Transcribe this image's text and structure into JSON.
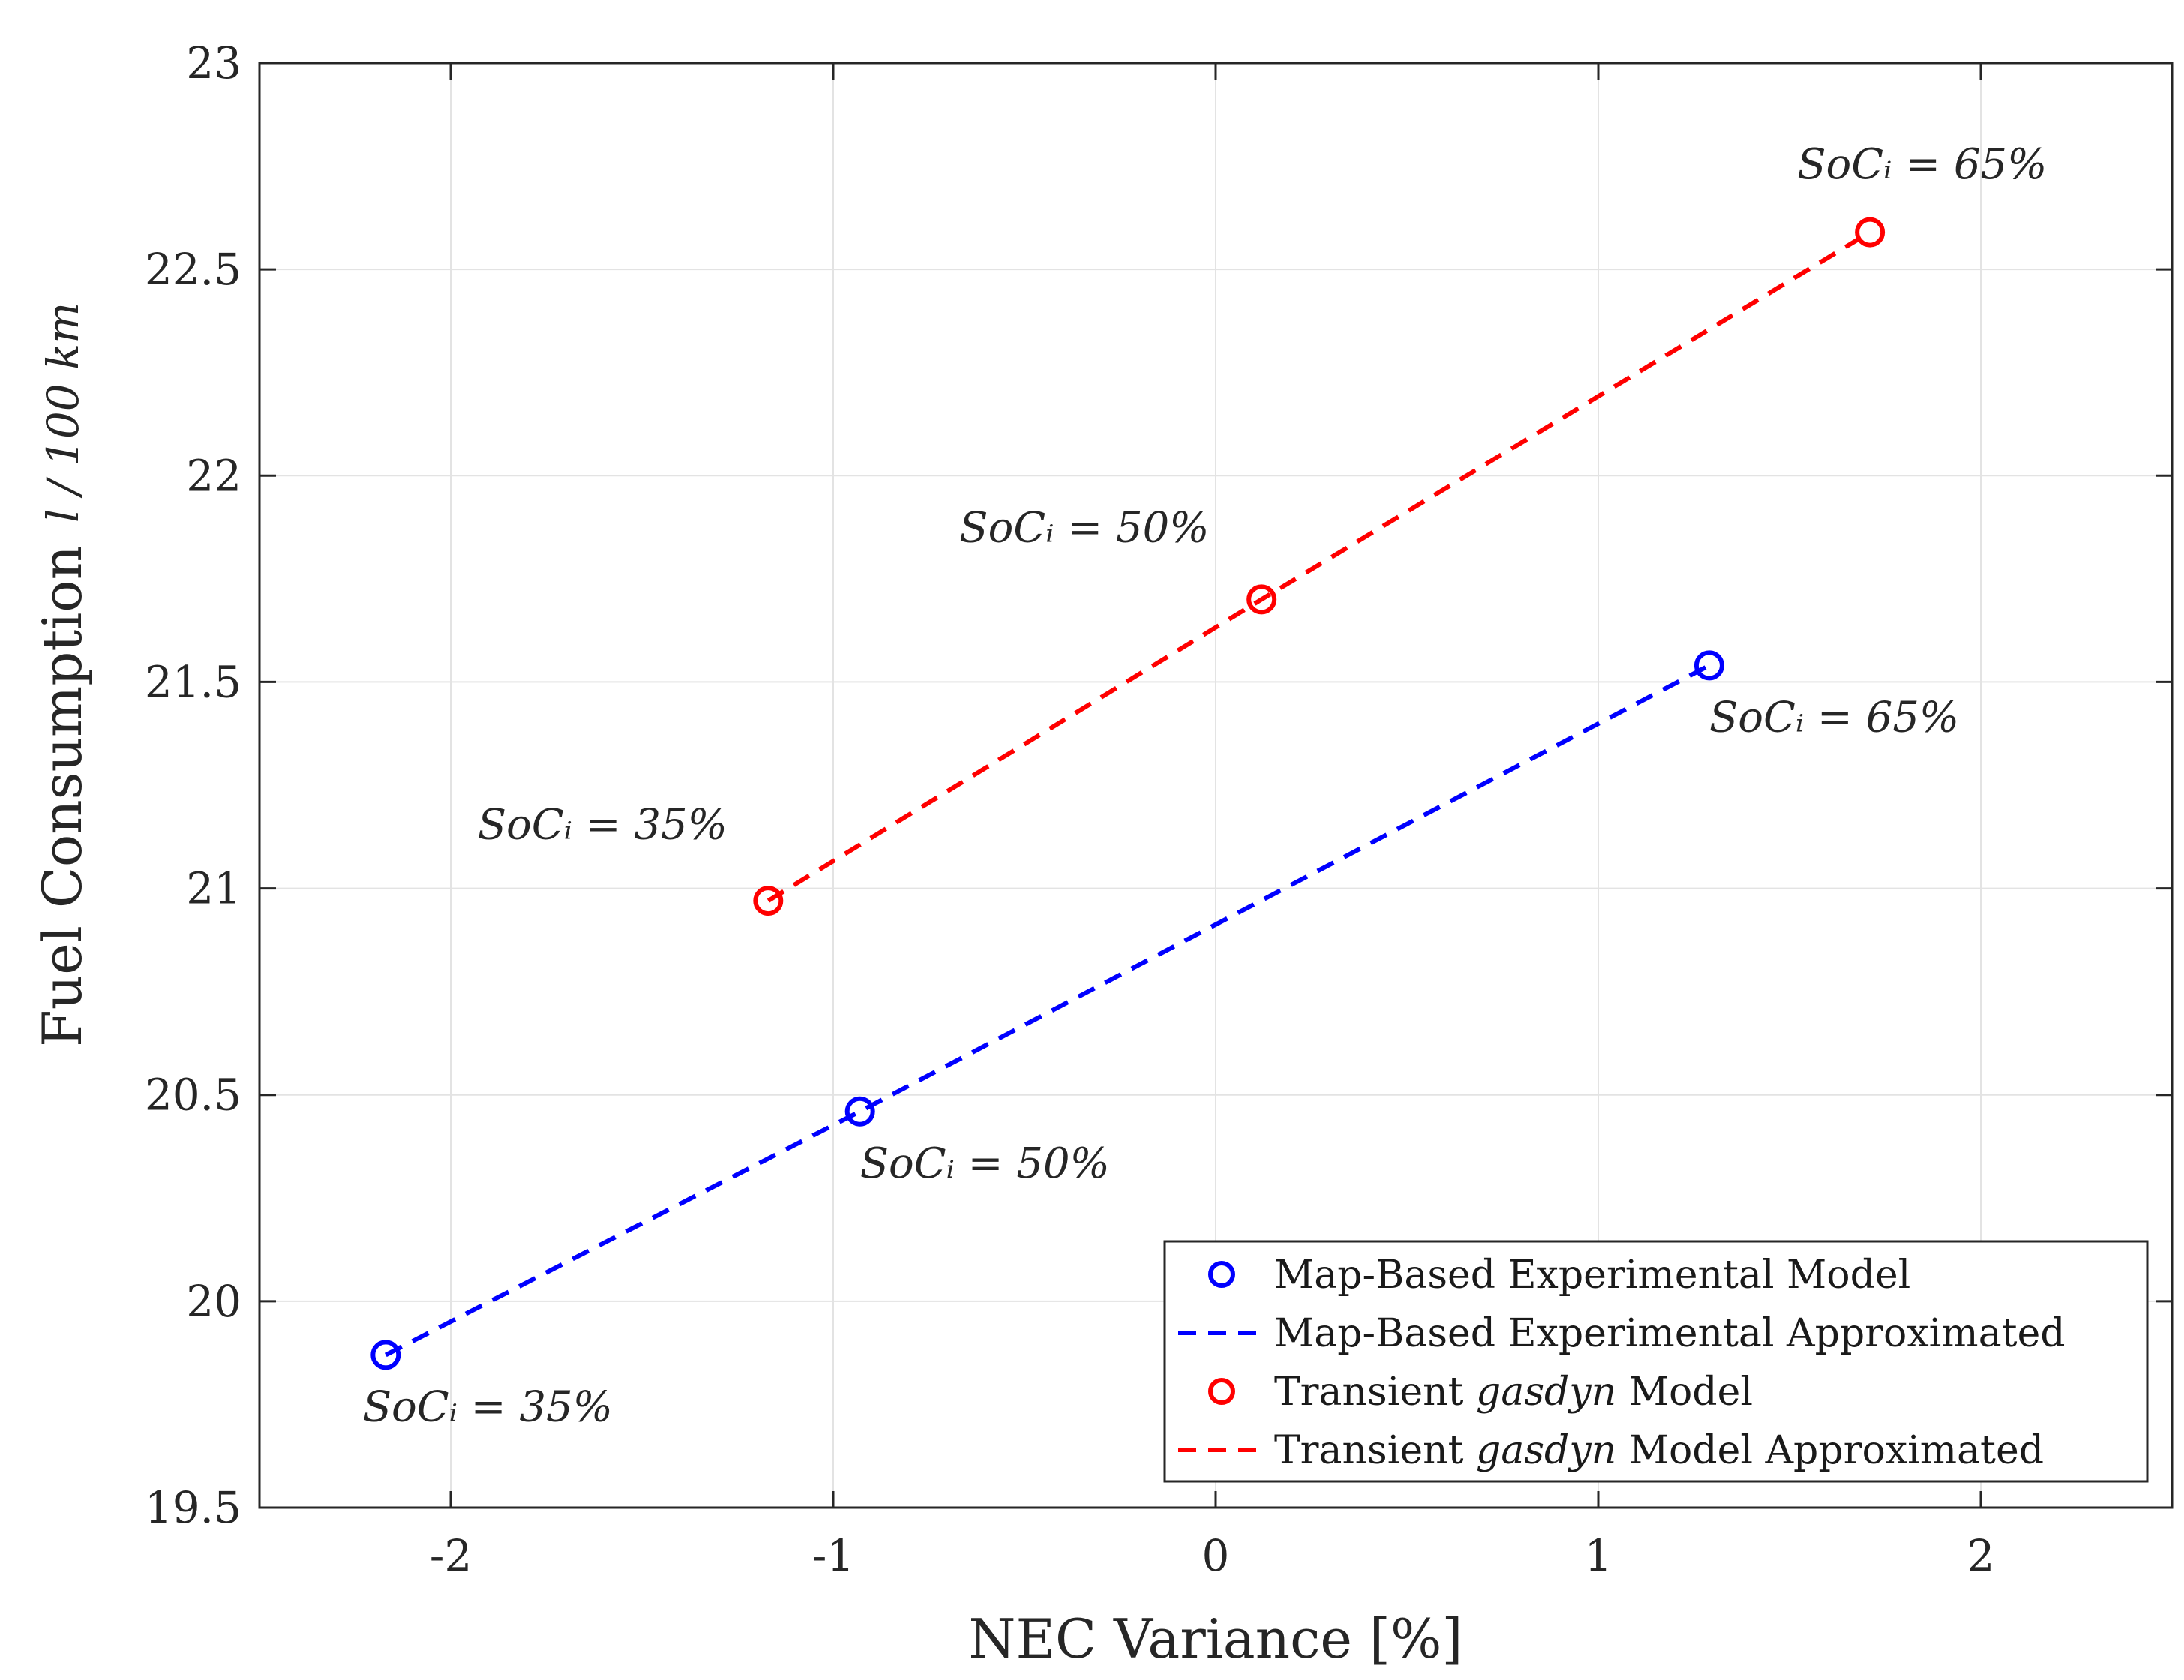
{
  "chart_data": {
    "type": "line",
    "title": "",
    "xlabel": "NEC Variance [%]",
    "ylabel": "Fuel Consumption",
    "ylabel_unit": "l / 100 km",
    "xlim": [
      -2.5,
      2.5
    ],
    "ylim": [
      19.5,
      23
    ],
    "xticks": [
      -2,
      -1,
      0,
      1,
      2
    ],
    "xtick_labels": [
      "-2",
      "-1",
      "0",
      "1",
      "2"
    ],
    "yticks": [
      19.5,
      20,
      20.5,
      21,
      21.5,
      22,
      22.5,
      23
    ],
    "ytick_labels": [
      "19.5",
      "20",
      "20.5",
      "21",
      "21.5",
      "22",
      "22.5",
      "23"
    ],
    "grid": true,
    "legend_position": "bottom-right",
    "series": [
      {
        "name": "Map-Based Experimental Model",
        "kind": "markers",
        "color": "#0000ff",
        "x": [
          -2.17,
          -0.93,
          1.29
        ],
        "y": [
          19.87,
          20.46,
          21.54
        ]
      },
      {
        "name": "Map-Based Experimental Approximated",
        "kind": "dashed",
        "color": "#0000ff",
        "x": [
          -2.17,
          -0.93,
          1.29
        ],
        "y": [
          19.87,
          20.46,
          21.54
        ]
      },
      {
        "name": "Transient gasdyn Model",
        "kind": "markers",
        "color": "#ff0000",
        "x": [
          -1.17,
          0.12,
          1.71
        ],
        "y": [
          20.97,
          21.7,
          22.59
        ]
      },
      {
        "name": "Transient gasdyn Model Approximated",
        "kind": "dashed",
        "color": "#ff0000",
        "x": [
          -1.17,
          0.12,
          1.71
        ],
        "y": [
          20.97,
          21.7,
          22.59
        ]
      }
    ],
    "annotations": [
      {
        "text": "SoCᵢ = 35%",
        "x": -2.23,
        "y": 19.71
      },
      {
        "text": "SoCᵢ = 50%",
        "x": -0.93,
        "y": 20.3
      },
      {
        "text": "SoCᵢ = 65%",
        "x": 1.29,
        "y": 21.38
      },
      {
        "text": "SoCᵢ = 35%",
        "x": -1.93,
        "y": 21.12
      },
      {
        "text": "SoCᵢ = 50%",
        "x": -0.67,
        "y": 21.84
      },
      {
        "text": "SoCᵢ = 65%",
        "x": 1.52,
        "y": 22.72
      }
    ],
    "legend": [
      {
        "label_prefix": "Map-Based Experimental Model",
        "label_italic": "",
        "label_suffix": "",
        "color": "#0000ff",
        "symbol": "circle"
      },
      {
        "label_prefix": "Map-Based Experimental Approximated",
        "label_italic": "",
        "label_suffix": "",
        "color": "#0000ff",
        "symbol": "dash"
      },
      {
        "label_prefix": "Transient ",
        "label_italic": "gasdyn",
        "label_suffix": " Model",
        "color": "#ff0000",
        "symbol": "circle"
      },
      {
        "label_prefix": "Transient ",
        "label_italic": "gasdyn",
        "label_suffix": " Model Approximated",
        "color": "#ff0000",
        "symbol": "dash"
      }
    ]
  }
}
